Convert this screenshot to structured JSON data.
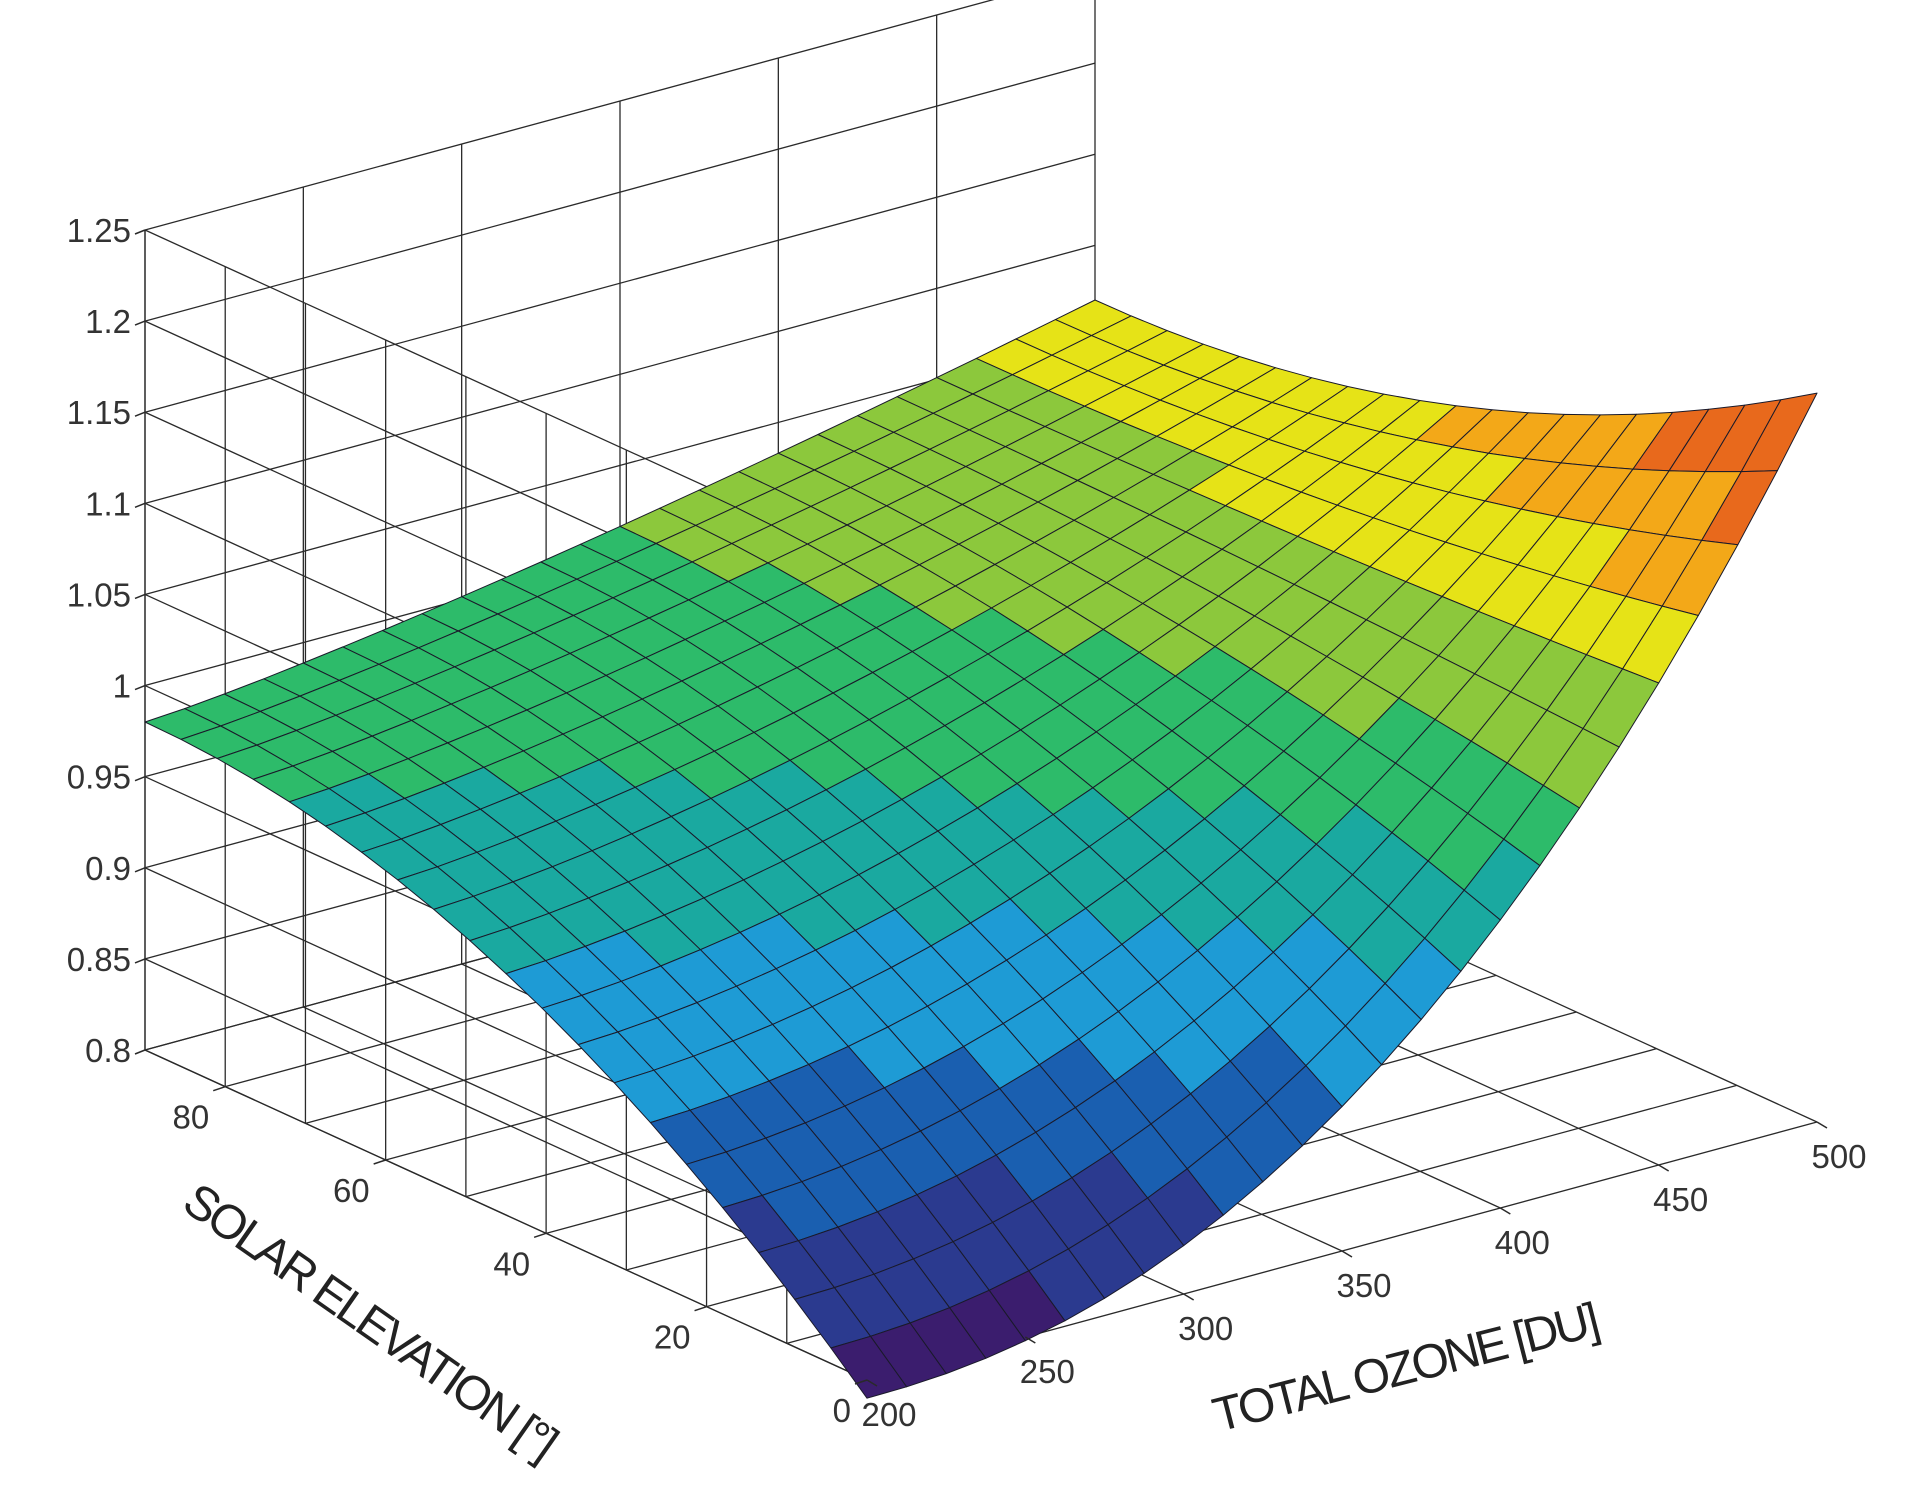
{
  "chart_data": {
    "type": "surface3d",
    "title": "",
    "xlabel": "TOTAL OZONE [DU]",
    "ylabel": "SOLAR ELEVATION [°]",
    "zlabel": "",
    "x_ticks": [
      "200",
      "250",
      "300",
      "350",
      "400",
      "450",
      "500"
    ],
    "y_ticks": [
      "0",
      "20",
      "40",
      "60",
      "80"
    ],
    "z_ticks": [
      "0.8",
      "0.85",
      "0.9",
      "0.95",
      "1",
      "1.05",
      "1.1",
      "1.15",
      "1.2",
      "1.25"
    ],
    "xlim": [
      200,
      500
    ],
    "ylim": [
      0,
      90
    ],
    "zlim": [
      0.8,
      1.25
    ],
    "grid": true,
    "colormap": [
      "#3b1d6e",
      "#2b3a8f",
      "#1a5fb0",
      "#1e9bd5",
      "#1aa9a0",
      "#2dbb6a",
      "#8cc83c",
      "#e6e317",
      "#f3a818",
      "#e8691c",
      "#dd3a10"
    ],
    "surface_summary": {
      "x_values_DU": [
        200,
        500
      ],
      "y_values_deg": [
        0,
        90
      ],
      "z_at_90deg_200DU": 0.98,
      "z_at_90deg_500DU": 1.07,
      "z_at_0deg_200DU": 0.79,
      "z_at_0deg_500DU": 1.2
    }
  }
}
